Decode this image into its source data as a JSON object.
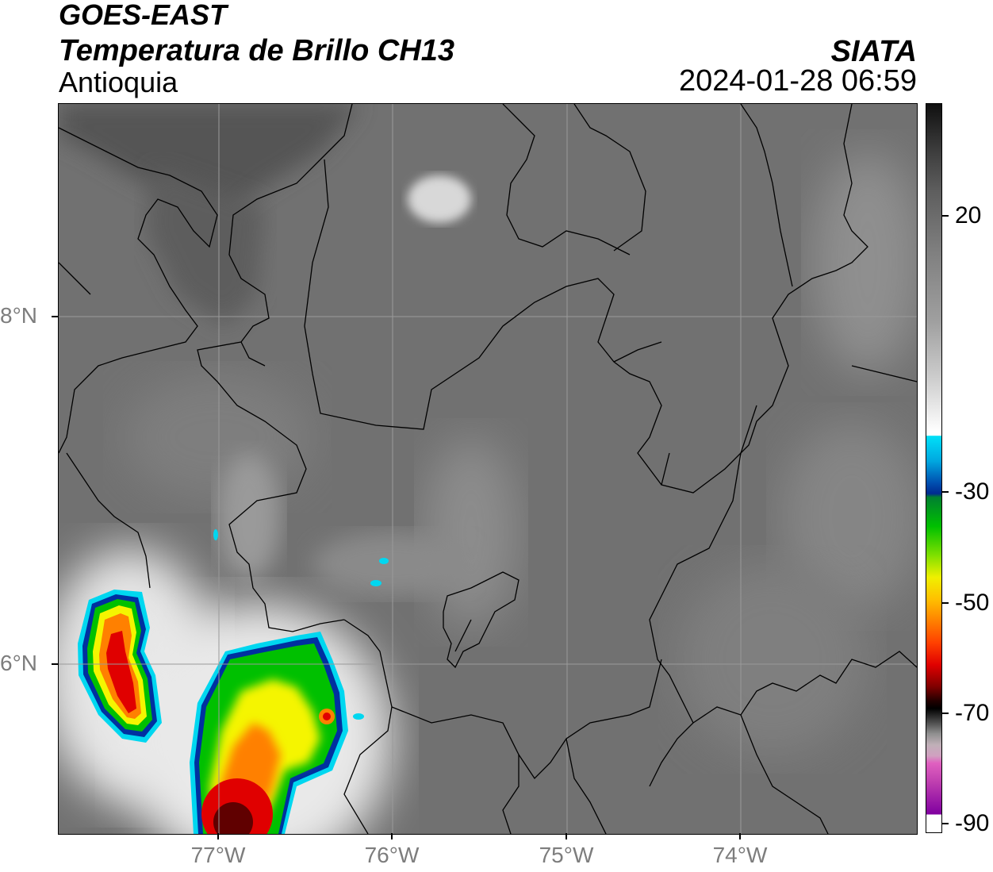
{
  "header": {
    "satellite": "GOES-EAST",
    "product": "Temperatura de Brillo CH13",
    "region": "Antioquia",
    "organization": "SIATA",
    "timestamp": "2024-01-28 06:59"
  },
  "axes": {
    "latitude_labels": [
      "8°N",
      "6°N"
    ],
    "longitude_labels": [
      "77°W",
      "76°W",
      "75°W",
      "74°W"
    ]
  },
  "colorbar": {
    "tick_labels": [
      "20",
      "-30",
      "-50",
      "-70",
      "-90"
    ],
    "colors": {
      "warm": "#1a1a1a",
      "gray": "#8c8c8c",
      "white": "#ffffff",
      "cyan": "#00d7f0",
      "blue": "#0030a0",
      "green": "#00c000",
      "yellow": "#f5f500",
      "orange": "#ff8000",
      "red": "#e00000",
      "dark_red": "#600000",
      "black": "#000000",
      "pink": "#e060c0",
      "purple": "#8000a0"
    }
  },
  "colors": {
    "background_gray": "#6c6c6c",
    "boundary": "#000000",
    "grid": "#9a9a9a"
  }
}
